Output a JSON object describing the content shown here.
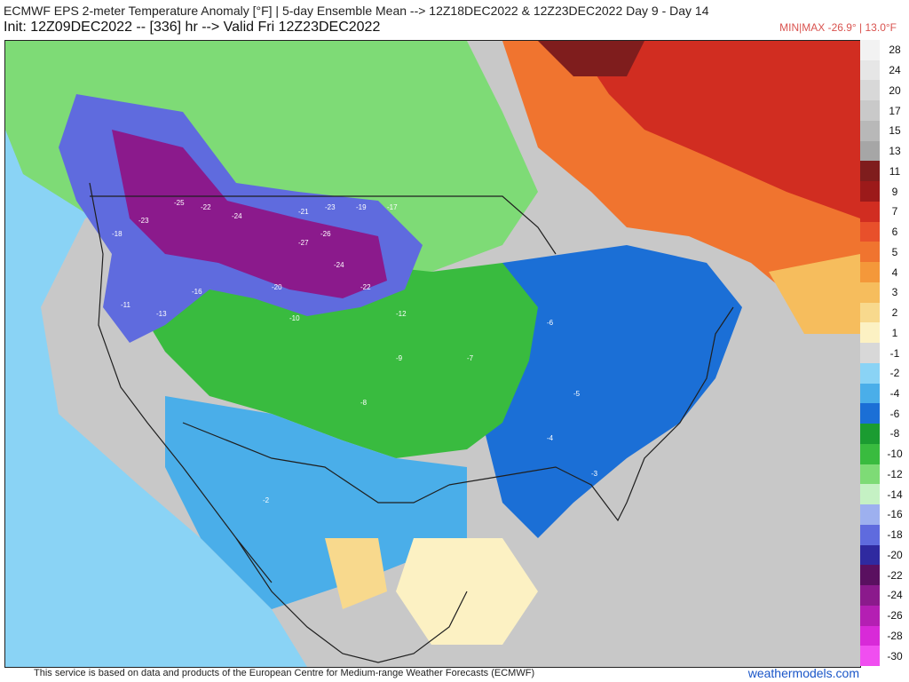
{
  "header": {
    "title_line1": "ECMWF EPS 2-meter Temperature Anomaly [°F] | 5-day Ensemble Mean --> 12Z18DEC2022 & 12Z23DEC2022   Day 9 - Day 14",
    "title_line2": "Init: 12Z09DEC2022 -- [336] hr --> Valid Fri 12Z23DEC2022",
    "minmax": "MIN|MAX -26.9° | 13.0°F"
  },
  "footer": {
    "attribution": "This service is based on data and products of the European Centre for Medium-range Weather Forecasts (ECMWF)",
    "brand": "weathermodels.com"
  },
  "colors": {
    "land_bg": "#cfcfcf",
    "boundary": "#1f1f1f"
  },
  "scale": [
    {
      "label": "28",
      "color": "#f2f2f2"
    },
    {
      "label": "24",
      "color": "#e6e6e6"
    },
    {
      "label": "20",
      "color": "#d8d8d8"
    },
    {
      "label": "17",
      "color": "#c9c9c9"
    },
    {
      "label": "15",
      "color": "#b8b8b8"
    },
    {
      "label": "13",
      "color": "#a6a6a6"
    },
    {
      "label": "11",
      "color": "#7f1d1d"
    },
    {
      "label": "9",
      "color": "#9c1a1a"
    },
    {
      "label": "7",
      "color": "#d12d21"
    },
    {
      "label": "6",
      "color": "#e8502b"
    },
    {
      "label": "5",
      "color": "#f0742f"
    },
    {
      "label": "4",
      "color": "#f4983a"
    },
    {
      "label": "3",
      "color": "#f6bd5d"
    },
    {
      "label": "2",
      "color": "#f8d98d"
    },
    {
      "label": "1",
      "color": "#fcf1c3"
    },
    {
      "label": "-1",
      "color": "#d8d8d8"
    },
    {
      "label": "-2",
      "color": "#8ad3f5"
    },
    {
      "label": "-4",
      "color": "#4aaee9"
    },
    {
      "label": "-6",
      "color": "#1b6fd6"
    },
    {
      "label": "-8",
      "color": "#1b9c31"
    },
    {
      "label": "-10",
      "color": "#39bb3f"
    },
    {
      "label": "-12",
      "color": "#7edb76"
    },
    {
      "label": "-14",
      "color": "#c5f1c4"
    },
    {
      "label": "-16",
      "color": "#9db0ef"
    },
    {
      "label": "-18",
      "color": "#5f6bde"
    },
    {
      "label": "-20",
      "color": "#2f2aa0"
    },
    {
      "label": "-22",
      "color": "#5a1060"
    },
    {
      "label": "-24",
      "color": "#8b1a8c"
    },
    {
      "label": "-26",
      "color": "#b41fb3"
    },
    {
      "label": "-28",
      "color": "#d82ad8"
    },
    {
      "label": "-30",
      "color": "#f04ef0"
    }
  ],
  "anomaly_labels": [
    {
      "v": "-18",
      "region": "pacific-northwest"
    },
    {
      "v": "-23",
      "region": "idaho"
    },
    {
      "v": "-25",
      "region": "montana"
    },
    {
      "v": "-22",
      "region": "montana"
    },
    {
      "v": "-24",
      "region": "montana"
    },
    {
      "v": "-21",
      "region": "north-dakota"
    },
    {
      "v": "-23",
      "region": "north-dakota"
    },
    {
      "v": "-19",
      "region": "north-dakota"
    },
    {
      "v": "-17",
      "region": "minnesota"
    },
    {
      "v": "-26",
      "region": "south-dakota"
    },
    {
      "v": "-27",
      "region": "south-dakota"
    },
    {
      "v": "-24",
      "region": "nebraska"
    },
    {
      "v": "-22",
      "region": "nebraska"
    },
    {
      "v": "-20",
      "region": "wyoming"
    },
    {
      "v": "-16",
      "region": "utah"
    },
    {
      "v": "-13",
      "region": "nevada"
    },
    {
      "v": "-11",
      "region": "california"
    },
    {
      "v": "-10",
      "region": "colorado"
    },
    {
      "v": "-12",
      "region": "kansas"
    },
    {
      "v": "-9",
      "region": "oklahoma"
    },
    {
      "v": "-8",
      "region": "texas"
    },
    {
      "v": "-7",
      "region": "arkansas"
    },
    {
      "v": "-6",
      "region": "ohio-valley"
    },
    {
      "v": "-5",
      "region": "southeast"
    },
    {
      "v": "-4",
      "region": "georgia"
    },
    {
      "v": "-3",
      "region": "florida"
    },
    {
      "v": "-2",
      "region": "baja"
    }
  ]
}
